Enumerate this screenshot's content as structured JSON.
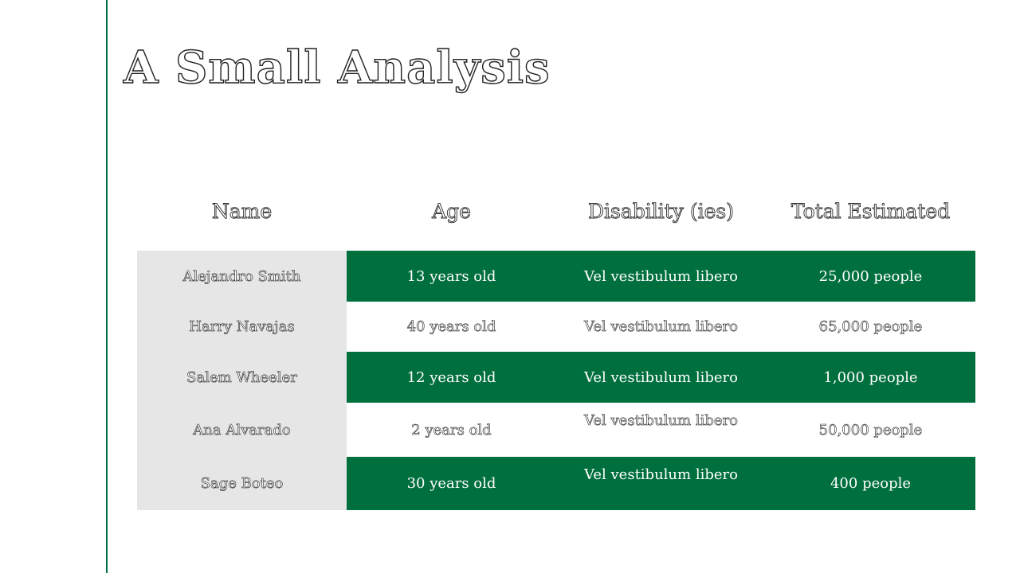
{
  "slide": {
    "title": "A Small Analysis"
  },
  "table": {
    "headers": [
      "Name",
      "Age",
      "Disability (ies)",
      "Total Estimated"
    ],
    "rows": [
      {
        "name": "Alejandro Smith",
        "age": "13 years old",
        "disability": "Vel vestibulum libero",
        "total": "25,000 people"
      },
      {
        "name": "Harry Navajas",
        "age": "40 years old",
        "disability": "Vel vestibulum libero",
        "total": "65,000 people"
      },
      {
        "name": "Salem Wheeler",
        "age": "12 years old",
        "disability": "Vel vestibulum libero",
        "total": "1,000 people"
      },
      {
        "name": "Ana Alvarado",
        "age": "2 years old",
        "disability": "Vel vestibulum libero",
        "total": "50,000 people"
      },
      {
        "name": "Sage Boteo",
        "age": "30 years old",
        "disability": "Vel vestibulum libero",
        "total": "400 people"
      }
    ]
  },
  "colors": {
    "accent_green": "#006f3e",
    "name_column_gray": "#e6e6e6",
    "background": "#ffffff"
  }
}
